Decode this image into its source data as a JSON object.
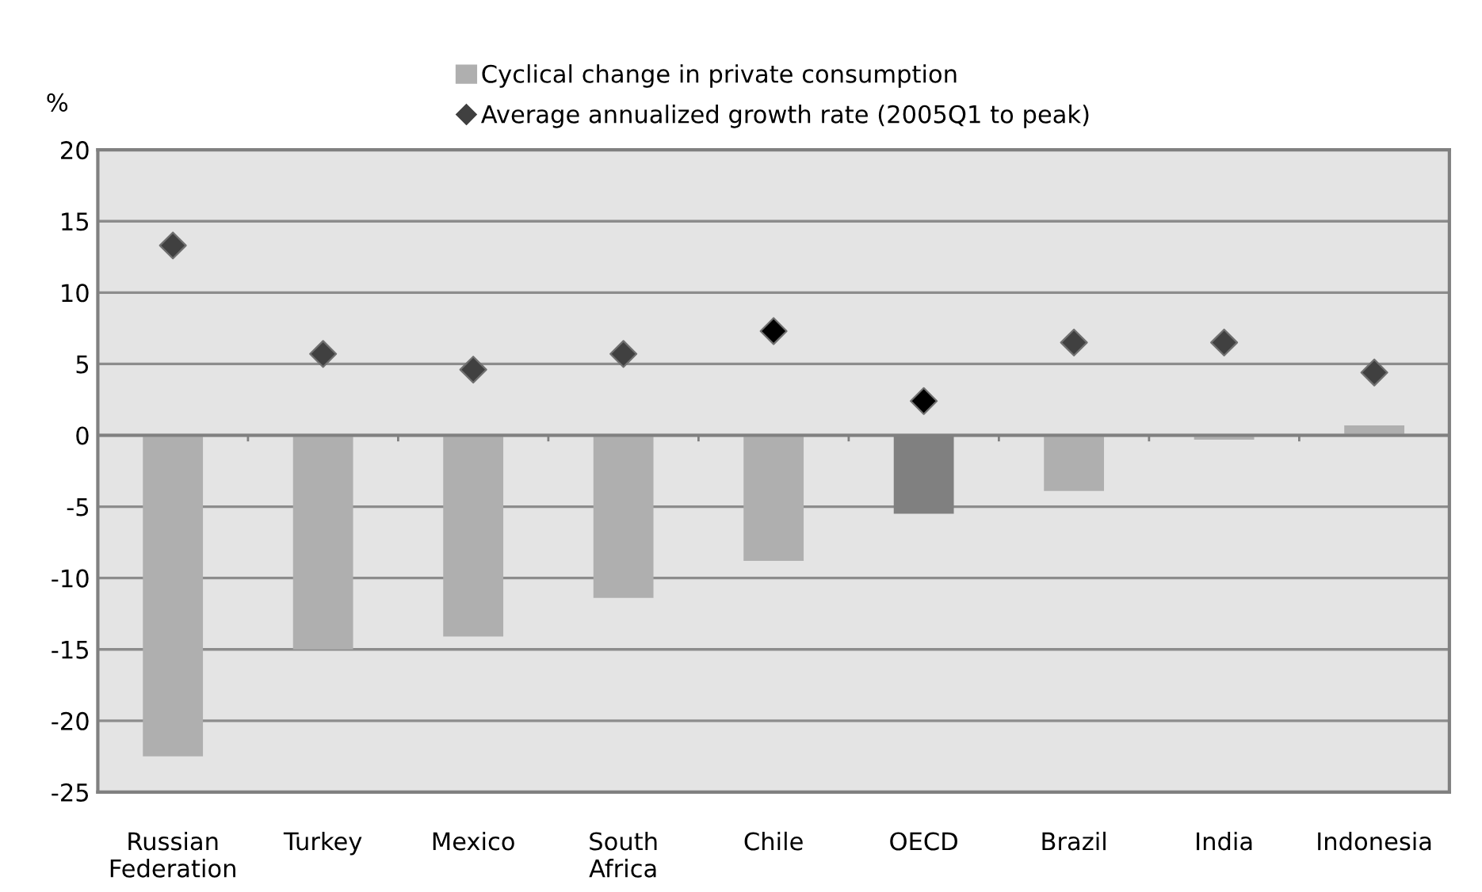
{
  "chart_data": {
    "type": "bar",
    "ylabel": "%",
    "categories": [
      "Russian\nFederation",
      "Turkey",
      "Mexico",
      "South\nAfrica",
      "Chile",
      "OECD",
      "Brazil",
      "India",
      "Indonesia"
    ],
    "series": [
      {
        "name": "Cyclical change in private consumption",
        "color": "#afafaf",
        "colors": [
          "#afafaf",
          "#afafaf",
          "#afafaf",
          "#afafaf",
          "#afafaf",
          "#808080",
          "#afafaf",
          "#afafaf",
          "#afafaf"
        ],
        "values": [
          -22.5,
          -15.0,
          -14.1,
          -11.4,
          -8.8,
          -5.5,
          -3.9,
          -0.3,
          0.7
        ]
      },
      {
        "name": "Average annualized growth rate (2005Q1 to peak)",
        "type": "scatter",
        "marker": "diamond",
        "color": "#404040",
        "colors": [
          "#404040",
          "#404040",
          "#404040",
          "#404040",
          "#000000",
          "#000000",
          "#404040",
          "#404040",
          "#404040"
        ],
        "values": [
          13.3,
          5.7,
          4.6,
          5.7,
          7.3,
          2.4,
          6.5,
          6.5,
          4.4
        ]
      }
    ],
    "ylim": [
      -25,
      20
    ],
    "yticks": [
      -25,
      -20,
      -15,
      -10,
      -5,
      0,
      5,
      10,
      15,
      20
    ],
    "grid": "y",
    "legend": "top"
  }
}
